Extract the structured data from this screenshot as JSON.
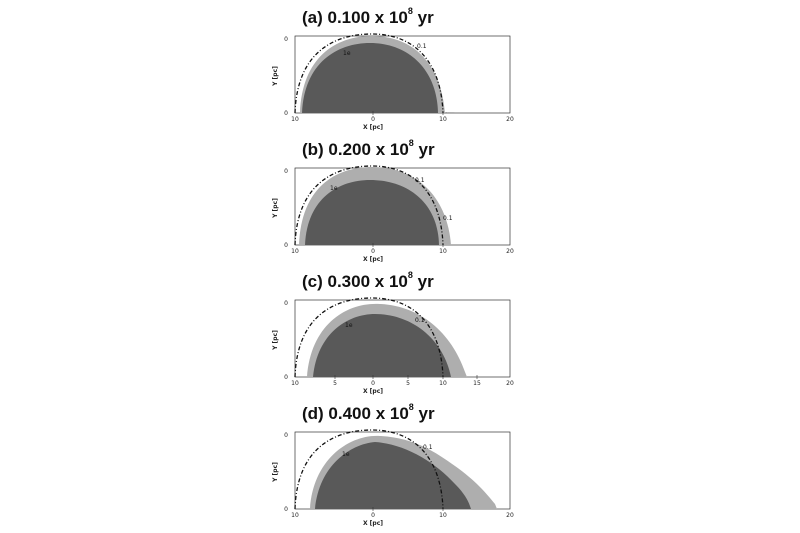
{
  "figure": {
    "panels": [
      {
        "label": "(a) 0.100 x 10",
        "exp": "8",
        "unit": "yr",
        "x_ticks": [
          "10",
          "0",
          "10",
          "20"
        ],
        "y_ticks": [
          "0",
          "0"
        ],
        "xlabel": "X [pc]",
        "ylabel": "Y [pc]",
        "contour_labels": [
          "1e",
          "0.1"
        ]
      },
      {
        "label": "(b) 0.200 x 10",
        "exp": "8",
        "unit": "yr",
        "x_ticks": [
          "10",
          "0",
          "10",
          "20"
        ],
        "y_ticks": [
          "0",
          "0"
        ],
        "xlabel": "X [pc]",
        "ylabel": "Y [pc]",
        "contour_labels": [
          "1e",
          "0.1",
          "0.1"
        ]
      },
      {
        "label": "(c) 0.300 x 10",
        "exp": "8",
        "unit": "yr",
        "x_ticks": [
          "10",
          "5",
          "0",
          "5",
          "10",
          "15",
          "20"
        ],
        "y_ticks": [
          "0",
          "0"
        ],
        "xlabel": "X [pc]",
        "ylabel": "Y [pc]",
        "contour_labels": [
          "1e",
          "0.1"
        ]
      },
      {
        "label": "(d) 0.400 x 10",
        "exp": "8",
        "unit": "yr",
        "x_ticks": [
          "10",
          "0",
          "10",
          "20"
        ],
        "y_ticks": [
          "0",
          "0"
        ],
        "xlabel": "X [pc]",
        "ylabel": "Y [pc]",
        "contour_labels": [
          "1e",
          "0.1"
        ]
      }
    ],
    "colors": {
      "dark": "#595959",
      "light": "#aeaeae",
      "line": "#111111"
    }
  }
}
